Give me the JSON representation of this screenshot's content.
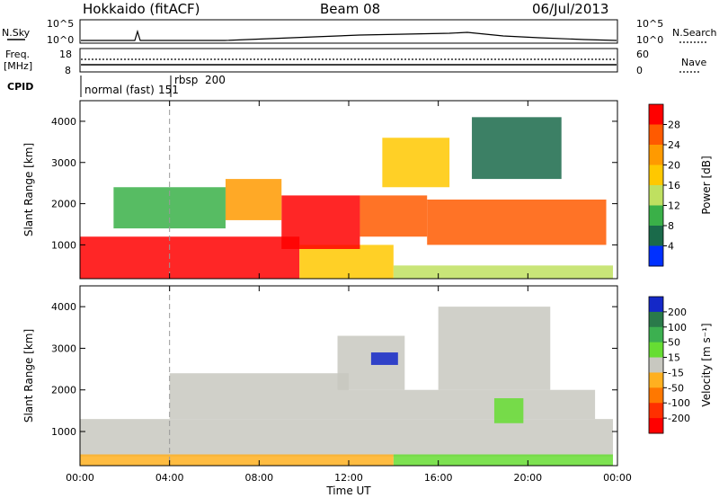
{
  "header": {
    "station": "Hokkaido (fitACF)",
    "beam": "Beam 08",
    "date": "06/Jul/2013"
  },
  "strip_panels": {
    "nsky_label": "N.Sky",
    "nsky_ticks": [
      "10^5",
      "10^0"
    ],
    "nsearch_label": "N.Search",
    "nsearch_ticks": [
      "10^5",
      "10^0"
    ],
    "freq_label_1": "Freq.",
    "freq_label_2": "[MHz]",
    "freq_ticks": [
      "18",
      "8"
    ],
    "nave_label": "Nave",
    "nave_ticks": [
      "60",
      "0"
    ],
    "cpid_label": "CPID",
    "cpid_mode_1": "normal (fast)",
    "cpid_mode_1_value": "151",
    "cpid_mode_2": "rbsp",
    "cpid_mode_2_value": "200"
  },
  "chart_data": [
    {
      "type": "heatmap",
      "panel": "power",
      "ylabel": "Slant Range [km]",
      "xlabel": "",
      "ylim": [
        180,
        4500
      ],
      "y_ticks": [
        1000,
        2000,
        3000,
        4000
      ],
      "x_ticks": [
        "00:00",
        "04:00",
        "08:00",
        "12:00",
        "16:00",
        "20:00",
        "00:00"
      ],
      "xlim_hours": [
        0,
        24
      ],
      "marker_hour": 4,
      "colorbar": {
        "label": "Power [dB]",
        "ticks": [
          "28",
          "24",
          "20",
          "16",
          "12",
          "8",
          "4"
        ],
        "colors": [
          "#ff0000",
          "#ff5a00",
          "#ff9a00",
          "#ffc800",
          "#bfe060",
          "#3ab048",
          "#1a6a4a",
          "#0030ff"
        ]
      },
      "regions": [
        {
          "x0": 0,
          "x1": 9.8,
          "r0": 180,
          "r1": 1200,
          "level": 0
        },
        {
          "x0": 9.8,
          "x1": 14,
          "r0": 180,
          "r1": 1000,
          "level": 3
        },
        {
          "x0": 9,
          "x1": 12.5,
          "r0": 900,
          "r1": 2200,
          "level": 0
        },
        {
          "x0": 12.5,
          "x1": 15.5,
          "r0": 1200,
          "r1": 2200,
          "level": 1
        },
        {
          "x0": 15.5,
          "x1": 23.5,
          "r0": 1000,
          "r1": 2100,
          "level": 1
        },
        {
          "x0": 14,
          "x1": 23.8,
          "r0": 180,
          "r1": 500,
          "level": 4
        },
        {
          "x0": 6.5,
          "x1": 9,
          "r0": 1600,
          "r1": 2600,
          "level": 2
        },
        {
          "x0": 1.5,
          "x1": 6.5,
          "r0": 1400,
          "r1": 2400,
          "level": 5
        },
        {
          "x0": 13.5,
          "x1": 16.5,
          "r0": 2400,
          "r1": 3600,
          "level": 3
        },
        {
          "x0": 17.5,
          "x1": 21.5,
          "r0": 2600,
          "r1": 4100,
          "level": 6
        }
      ]
    },
    {
      "type": "heatmap",
      "panel": "velocity",
      "ylabel": "Slant Range [km]",
      "xlabel": "Time UT",
      "ylim": [
        180,
        4500
      ],
      "y_ticks": [
        1000,
        2000,
        3000,
        4000
      ],
      "x_ticks": [
        "00:00",
        "04:00",
        "08:00",
        "12:00",
        "16:00",
        "20:00",
        "00:00"
      ],
      "xlim_hours": [
        0,
        24
      ],
      "marker_hour": 4,
      "colorbar": {
        "label": "Velocity [m s⁻¹]",
        "ticks": [
          "200",
          "100",
          "50",
          "15",
          "-15",
          "-50",
          "-100",
          "-200"
        ],
        "colors": [
          "#1428c8",
          "#2a7a4a",
          "#3cb050",
          "#66dd33",
          "#c8c8c0",
          "#ffb020",
          "#ff7800",
          "#ff3000",
          "#ff0000"
        ]
      },
      "regions": [
        {
          "x0": 0,
          "x1": 23.8,
          "r0": 400,
          "r1": 1300,
          "level": 4
        },
        {
          "x0": 4,
          "x1": 12,
          "r0": 1300,
          "r1": 2400,
          "level": 4
        },
        {
          "x0": 12,
          "x1": 23,
          "r0": 1300,
          "r1": 2000,
          "level": 4
        },
        {
          "x0": 11.5,
          "x1": 14.5,
          "r0": 2000,
          "r1": 3300,
          "level": 4
        },
        {
          "x0": 16,
          "x1": 21,
          "r0": 2000,
          "r1": 4000,
          "level": 4
        },
        {
          "x0": 18.5,
          "x1": 19.8,
          "r0": 1200,
          "r1": 1800,
          "level": 3
        },
        {
          "x0": 13,
          "x1": 14.2,
          "r0": 2600,
          "r1": 2900,
          "level": 0
        },
        {
          "x0": 0,
          "x1": 14,
          "r0": 180,
          "r1": 450,
          "level": 5
        },
        {
          "x0": 14,
          "x1": 23.8,
          "r0": 180,
          "r1": 450,
          "level": 3
        }
      ]
    }
  ]
}
